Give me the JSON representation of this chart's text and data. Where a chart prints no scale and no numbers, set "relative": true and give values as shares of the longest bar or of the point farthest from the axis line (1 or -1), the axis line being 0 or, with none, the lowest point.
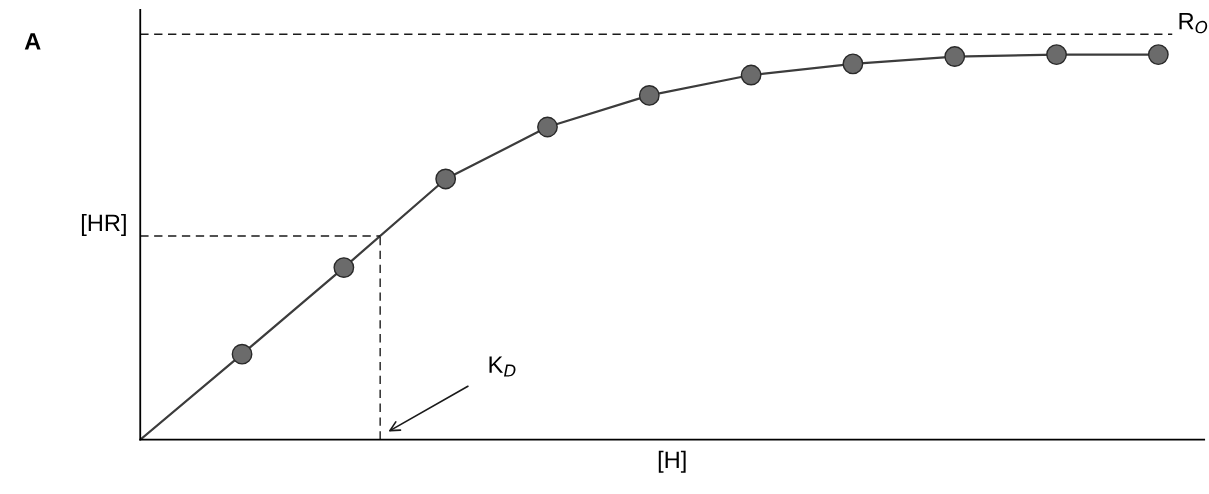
{
  "chart_data": {
    "type": "line",
    "relative": true,
    "xlabel": "[H]",
    "marker": "circle",
    "line_style": "solid",
    "categories": [
      null,
      null,
      null,
      null,
      null,
      null,
      null,
      null,
      null,
      null,
      null
    ],
    "series": [
      {
        "color": "#3c3c3c",
        "values": [
          0,
          0.222,
          0.447,
          0.677,
          0.812,
          0.894,
          0.947,
          0.976,
          0.995,
          1,
          1
        ]
      }
    ],
    "ref_lines": [
      {
        "axis": "y",
        "value": 1.053,
        "label": "R$_{O}$",
        "color": "#1a1a1a",
        "line_style": "dashed"
      },
      {
        "axis": "y",
        "value": 0.529,
        "label": "[HR]",
        "color": "#1a1a1a",
        "line_style": "dashed"
      }
    ],
    "annotations": [
      "A",
      "K$_{D}$"
    ],
    "legend": false
  }
}
